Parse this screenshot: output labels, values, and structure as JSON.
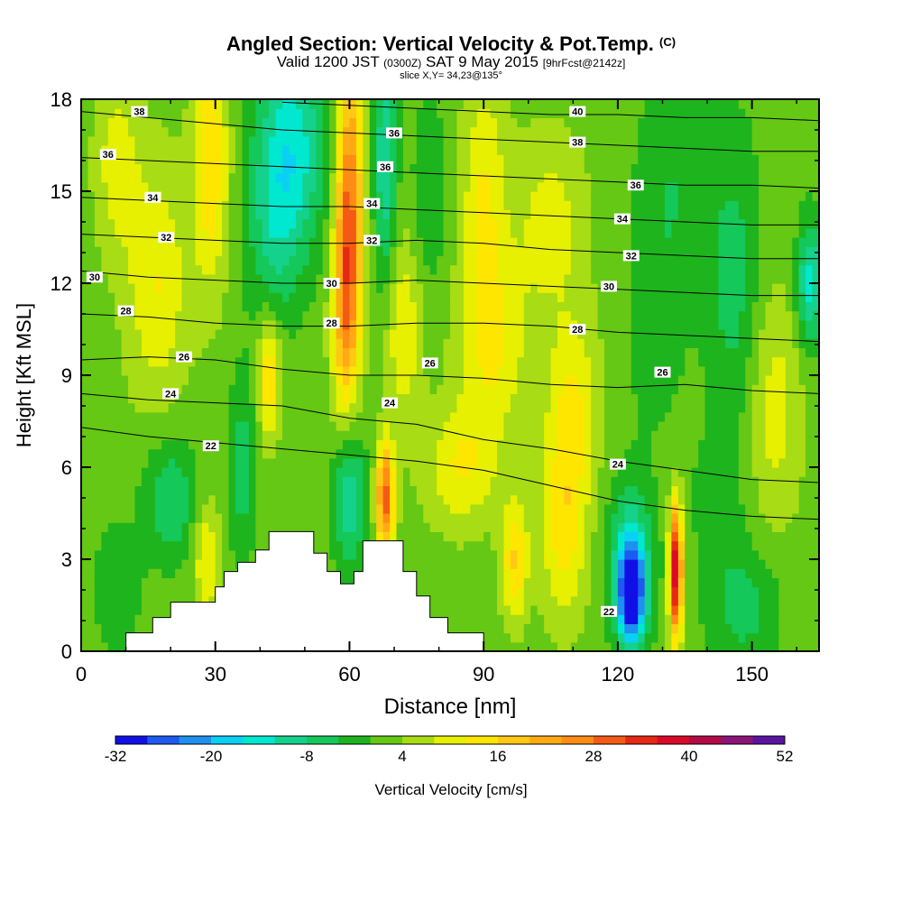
{
  "title": {
    "main": "Angled Section: Vertical Velocity & Pot.Temp.",
    "main_suffix": "(C)",
    "valid_prefix": "Valid 1200 JST",
    "valid_utc": "(0300Z)",
    "valid_date": "SAT 9 May 2015",
    "forecast": "[9hrFcst@2142z]",
    "slice": "slice X,Y= 34,23@135°"
  },
  "colors": {
    "frame": "#000000",
    "terrain": "#ffffff",
    "contour": "#000000",
    "colorbar": [
      "#1010e6",
      "#1d5af0",
      "#1e90f0",
      "#0ad0f5",
      "#00e8d0",
      "#14d28c",
      "#14c85a",
      "#1eb41e",
      "#64c814",
      "#a8dc14",
      "#e6f000",
      "#ffe600",
      "#ffc814",
      "#ffaa14",
      "#ff8c14",
      "#f55a14",
      "#e62814",
      "#dc0a28",
      "#b40a46",
      "#8c1478",
      "#5a14a0"
    ]
  },
  "chart_data": {
    "type": "heatmap",
    "description": "Vertical cross section of vertical velocity (filled, cm/s) with potential temperature contours (C)",
    "xlabel": "Distance [nm]",
    "ylabel": "Height [Kft MSL]",
    "xlim": [
      0,
      165
    ],
    "ylim": [
      0,
      18
    ],
    "xticks": [
      "0",
      "30",
      "60",
      "90",
      "120",
      "150"
    ],
    "yticks": [
      "0",
      "3",
      "6",
      "9",
      "12",
      "15",
      "18"
    ],
    "colorbar": {
      "label": "Vertical Velocity [cm/s]",
      "min": -32,
      "max": 52,
      "step": 4,
      "tick_labels": [
        "-32",
        "-20",
        "-8",
        "4",
        "16",
        "28",
        "40",
        "52"
      ]
    },
    "velocity_cells": [
      {
        "x": 47,
        "y": 16.5,
        "wx": 8,
        "wy": 3.5,
        "v": -16
      },
      {
        "x": 43,
        "y": 13.5,
        "wx": 6,
        "wy": 3,
        "v": -8
      },
      {
        "x": 60,
        "y": 15,
        "wx": 3,
        "wy": 5,
        "v": 24
      },
      {
        "x": 59,
        "y": 11,
        "wx": 3,
        "wy": 3.5,
        "v": 16
      },
      {
        "x": 68,
        "y": 16,
        "wx": 2.5,
        "wy": 4,
        "v": -14
      },
      {
        "x": 29,
        "y": 16,
        "wx": 4,
        "wy": 4,
        "v": 14
      },
      {
        "x": 17,
        "y": 12,
        "wx": 7,
        "wy": 4,
        "v": 10
      },
      {
        "x": 8,
        "y": 16,
        "wx": 5,
        "wy": 3,
        "v": 8
      },
      {
        "x": 90,
        "y": 15,
        "wx": 5,
        "wy": 4,
        "v": 10
      },
      {
        "x": 92,
        "y": 10,
        "wx": 8,
        "wy": 3,
        "v": 10
      },
      {
        "x": 72,
        "y": 10.5,
        "wx": 4,
        "wy": 3,
        "v": 10
      },
      {
        "x": 78,
        "y": 15,
        "wx": 4,
        "wy": 3,
        "v": -6
      },
      {
        "x": 110,
        "y": 8,
        "wx": 6,
        "wy": 3,
        "v": 10
      },
      {
        "x": 108,
        "y": 4,
        "wx": 5,
        "wy": 3,
        "v": 12
      },
      {
        "x": 105,
        "y": 14,
        "wx": 8,
        "wy": 3,
        "v": 8
      },
      {
        "x": 132,
        "y": 15,
        "wx": 8,
        "wy": 4,
        "v": -6
      },
      {
        "x": 128,
        "y": 10,
        "wx": 6,
        "wy": 3,
        "v": -4
      },
      {
        "x": 146,
        "y": 12,
        "wx": 6,
        "wy": 5,
        "v": -8
      },
      {
        "x": 163,
        "y": 12,
        "wx": 3,
        "wy": 2,
        "v": -16
      },
      {
        "x": 155,
        "y": 8,
        "wx": 6,
        "wy": 4,
        "v": 8
      },
      {
        "x": 123,
        "y": 1.8,
        "wx": 3,
        "wy": 1.6,
        "v": -30
      },
      {
        "x": 123,
        "y": 3,
        "wx": 5,
        "wy": 2.5,
        "v": -14
      },
      {
        "x": 133,
        "y": 2.6,
        "wx": 1.5,
        "wy": 2.2,
        "v": 38
      },
      {
        "x": 68,
        "y": 5,
        "wx": 2,
        "wy": 1.8,
        "v": 28
      },
      {
        "x": 60,
        "y": 5,
        "wx": 3.5,
        "wy": 2.4,
        "v": -14
      },
      {
        "x": 42,
        "y": 9,
        "wx": 2.5,
        "wy": 2,
        "v": 14
      },
      {
        "x": 20,
        "y": 5,
        "wx": 6,
        "wy": 2,
        "v": -10
      },
      {
        "x": 8,
        "y": 2,
        "wx": 5,
        "wy": 2,
        "v": -6
      },
      {
        "x": 148,
        "y": 1.5,
        "wx": 8,
        "wy": 2,
        "v": -8
      },
      {
        "x": 142,
        "y": 5,
        "wx": 6,
        "wy": 2,
        "v": -4
      },
      {
        "x": 97,
        "y": 3,
        "wx": 3,
        "wy": 2,
        "v": 14
      },
      {
        "x": 85,
        "y": 6,
        "wx": 8,
        "wy": 2,
        "v": 10
      },
      {
        "x": 36,
        "y": 6,
        "wx": 3,
        "wy": 3,
        "v": -8
      },
      {
        "x": 28,
        "y": 3,
        "wx": 3,
        "wy": 2,
        "v": 10
      }
    ],
    "terrain_top": [
      [
        0,
        0
      ],
      [
        10,
        0
      ],
      [
        10,
        0.6
      ],
      [
        16,
        0.6
      ],
      [
        16,
        1.1
      ],
      [
        20,
        1.1
      ],
      [
        20,
        1.6
      ],
      [
        30,
        1.6
      ],
      [
        30,
        2.1
      ],
      [
        32,
        2.1
      ],
      [
        32,
        2.6
      ],
      [
        35,
        2.6
      ],
      [
        35,
        2.9
      ],
      [
        39,
        2.9
      ],
      [
        39,
        3.3
      ],
      [
        42,
        3.3
      ],
      [
        42,
        3.9
      ],
      [
        52,
        3.9
      ],
      [
        52,
        3.2
      ],
      [
        55,
        3.2
      ],
      [
        55,
        2.6
      ],
      [
        58,
        2.6
      ],
      [
        58,
        2.2
      ],
      [
        61,
        2.2
      ],
      [
        61,
        2.6
      ],
      [
        63,
        2.6
      ],
      [
        63,
        3.6
      ],
      [
        67,
        3.6
      ],
      [
        67,
        3.6
      ],
      [
        72,
        3.6
      ],
      [
        72,
        2.6
      ],
      [
        75,
        2.6
      ],
      [
        75,
        1.8
      ],
      [
        78,
        1.8
      ],
      [
        78,
        1.1
      ],
      [
        82,
        1.1
      ],
      [
        82,
        0.6
      ],
      [
        90,
        0.6
      ],
      [
        90,
        0
      ],
      [
        165,
        0
      ]
    ],
    "theta_levels": [
      {
        "value": 22,
        "y": [
          7.3,
          7.0,
          6.8,
          6.6,
          6.4,
          6.2,
          5.9,
          5.4,
          4.9,
          4.6,
          4.4,
          4.3
        ]
      },
      {
        "value": 24,
        "y": [
          8.4,
          8.2,
          8.1,
          8.0,
          7.6,
          7.4,
          6.9,
          6.6,
          6.2,
          5.9,
          5.6,
          5.5
        ]
      },
      {
        "value": 26,
        "y": [
          9.5,
          9.6,
          9.5,
          9.2,
          9.0,
          9.0,
          8.9,
          8.7,
          8.6,
          8.7,
          8.5,
          8.4
        ]
      },
      {
        "value": 28,
        "y": [
          11.0,
          10.9,
          10.7,
          10.6,
          10.6,
          10.7,
          10.7,
          10.6,
          10.4,
          10.3,
          10.2,
          10.1
        ]
      },
      {
        "value": 30,
        "y": [
          12.4,
          12.2,
          12.1,
          12.0,
          12.0,
          12.1,
          12.0,
          11.9,
          11.8,
          11.7,
          11.6,
          11.6
        ]
      },
      {
        "value": 32,
        "y": [
          13.6,
          13.5,
          13.4,
          13.3,
          13.3,
          13.4,
          13.3,
          13.1,
          13.0,
          12.9,
          12.8,
          12.8
        ]
      },
      {
        "value": 34,
        "y": [
          14.8,
          14.7,
          14.6,
          14.5,
          14.5,
          14.4,
          14.3,
          14.2,
          14.1,
          14.0,
          13.9,
          13.9
        ]
      },
      {
        "value": 36,
        "y": [
          16.1,
          16.0,
          15.9,
          15.8,
          15.7,
          15.6,
          15.5,
          15.4,
          15.3,
          15.2,
          15.2,
          15.1
        ]
      },
      {
        "value": 38,
        "y": [
          17.6,
          17.4,
          17.2,
          17.0,
          16.9,
          16.8,
          16.7,
          16.6,
          16.5,
          16.4,
          16.3,
          16.3
        ]
      },
      {
        "value": 40,
        "y": [
          null,
          null,
          null,
          17.9,
          17.8,
          17.7,
          17.6,
          17.5,
          17.5,
          17.4,
          17.4,
          17.3
        ]
      }
    ],
    "theta_x": [
      0,
      15,
      30,
      45,
      60,
      75,
      90,
      105,
      120,
      135,
      150,
      165
    ],
    "contour_labels": [
      {
        "text": "38",
        "x": 13,
        "y": 17.6
      },
      {
        "text": "36",
        "x": 6,
        "y": 16.2
      },
      {
        "text": "34",
        "x": 16,
        "y": 14.8
      },
      {
        "text": "32",
        "x": 19,
        "y": 13.5
      },
      {
        "text": "30",
        "x": 3,
        "y": 12.2
      },
      {
        "text": "28",
        "x": 10,
        "y": 11.1
      },
      {
        "text": "26",
        "x": 23,
        "y": 9.6
      },
      {
        "text": "24",
        "x": 20,
        "y": 8.4
      },
      {
        "text": "22",
        "x": 29,
        "y": 6.7
      },
      {
        "text": "30",
        "x": 56,
        "y": 12.0
      },
      {
        "text": "28",
        "x": 56,
        "y": 10.7
      },
      {
        "text": "32",
        "x": 65,
        "y": 13.4
      },
      {
        "text": "34",
        "x": 65,
        "y": 14.6
      },
      {
        "text": "36",
        "x": 68,
        "y": 15.8
      },
      {
        "text": "36",
        "x": 70,
        "y": 16.9
      },
      {
        "text": "24",
        "x": 69,
        "y": 8.1
      },
      {
        "text": "26",
        "x": 78,
        "y": 9.4
      },
      {
        "text": "40",
        "x": 111,
        "y": 17.6
      },
      {
        "text": "38",
        "x": 111,
        "y": 16.6
      },
      {
        "text": "36",
        "x": 124,
        "y": 15.2
      },
      {
        "text": "34",
        "x": 121,
        "y": 14.1
      },
      {
        "text": "32",
        "x": 123,
        "y": 12.9
      },
      {
        "text": "30",
        "x": 118,
        "y": 11.9
      },
      {
        "text": "28",
        "x": 111,
        "y": 10.5
      },
      {
        "text": "26",
        "x": 130,
        "y": 9.1
      },
      {
        "text": "24",
        "x": 120,
        "y": 6.1
      },
      {
        "text": "22",
        "x": 118,
        "y": 1.3
      }
    ]
  }
}
